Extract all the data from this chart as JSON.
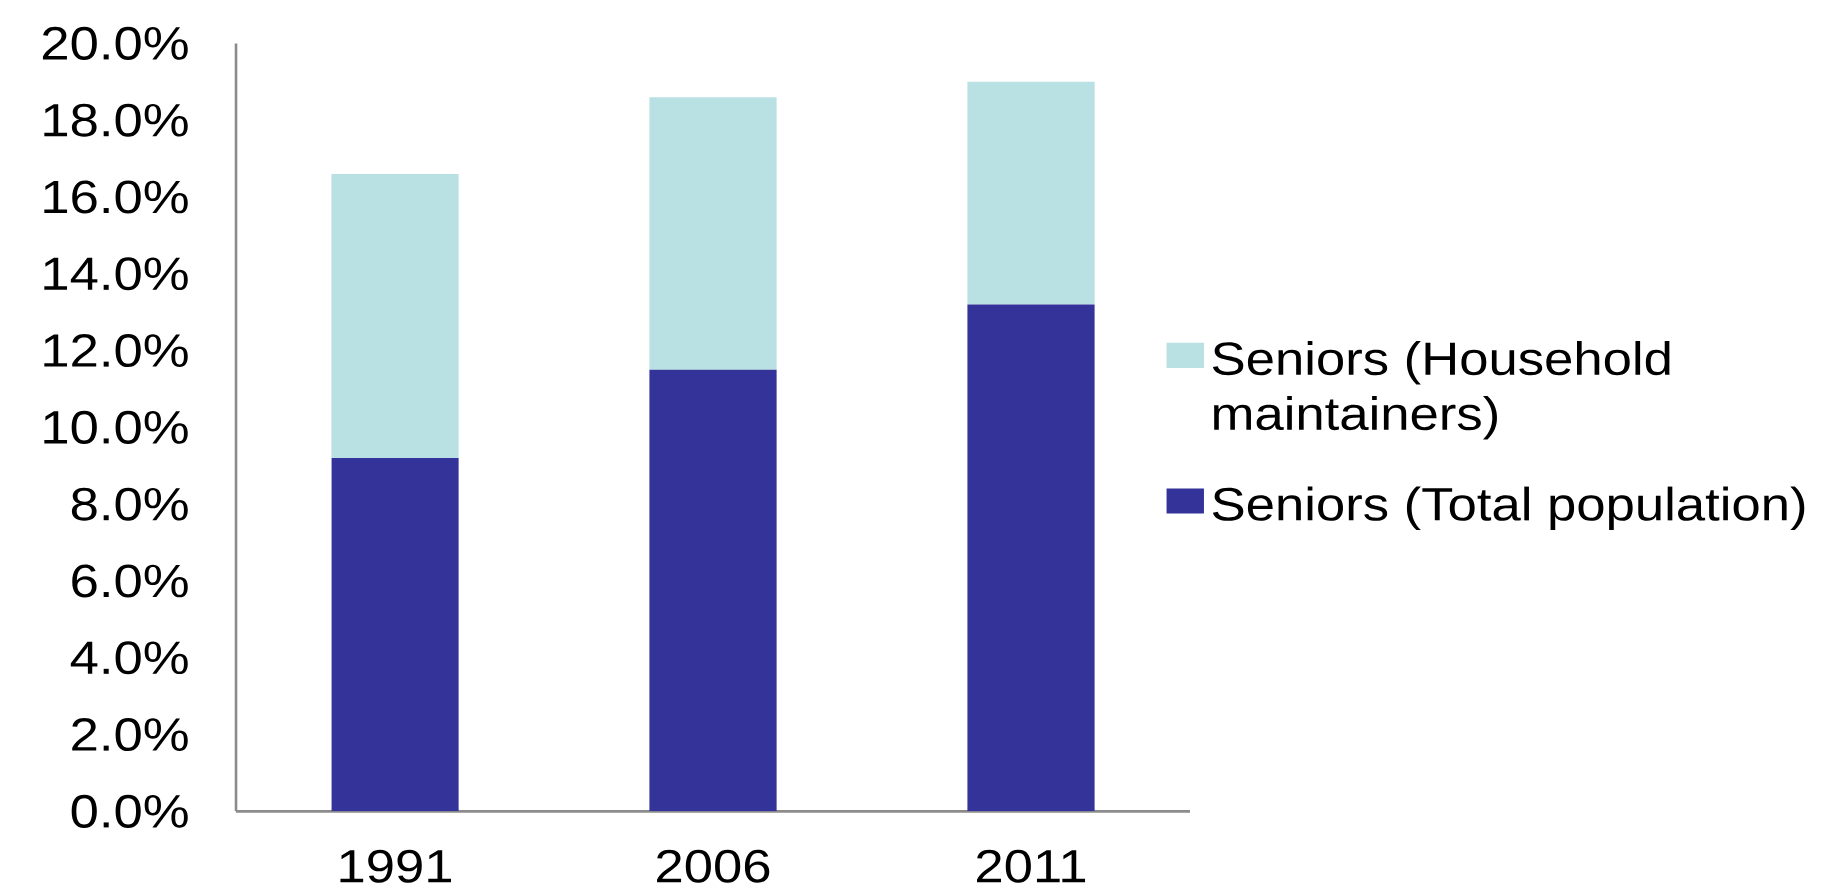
{
  "chart_data": {
    "type": "bar",
    "stacked": true,
    "categories": [
      "1991",
      "2006",
      "2011"
    ],
    "series": [
      {
        "name": "Seniors (Total population)",
        "color": "#333399",
        "values": [
          9.2,
          11.5,
          13.2
        ]
      },
      {
        "name": "Seniors (Household maintainers)",
        "color": "#b9e0e3",
        "values": [
          7.4,
          7.1,
          5.8
        ]
      }
    ],
    "ylim": [
      0,
      20
    ],
    "yticks": [
      {
        "value": 0,
        "label": "0.0%"
      },
      {
        "value": 2,
        "label": "2.0%"
      },
      {
        "value": 4,
        "label": "4.0%"
      },
      {
        "value": 6,
        "label": "6.0%"
      },
      {
        "value": 8,
        "label": "8.0%"
      },
      {
        "value": 10,
        "label": "10.0%"
      },
      {
        "value": 12,
        "label": "12.0%"
      },
      {
        "value": 14,
        "label": "14.0%"
      },
      {
        "value": 16,
        "label": "16.0%"
      },
      {
        "value": 18,
        "label": "18.0%"
      },
      {
        "value": 20,
        "label": "20.0%"
      }
    ],
    "legend": "right"
  }
}
